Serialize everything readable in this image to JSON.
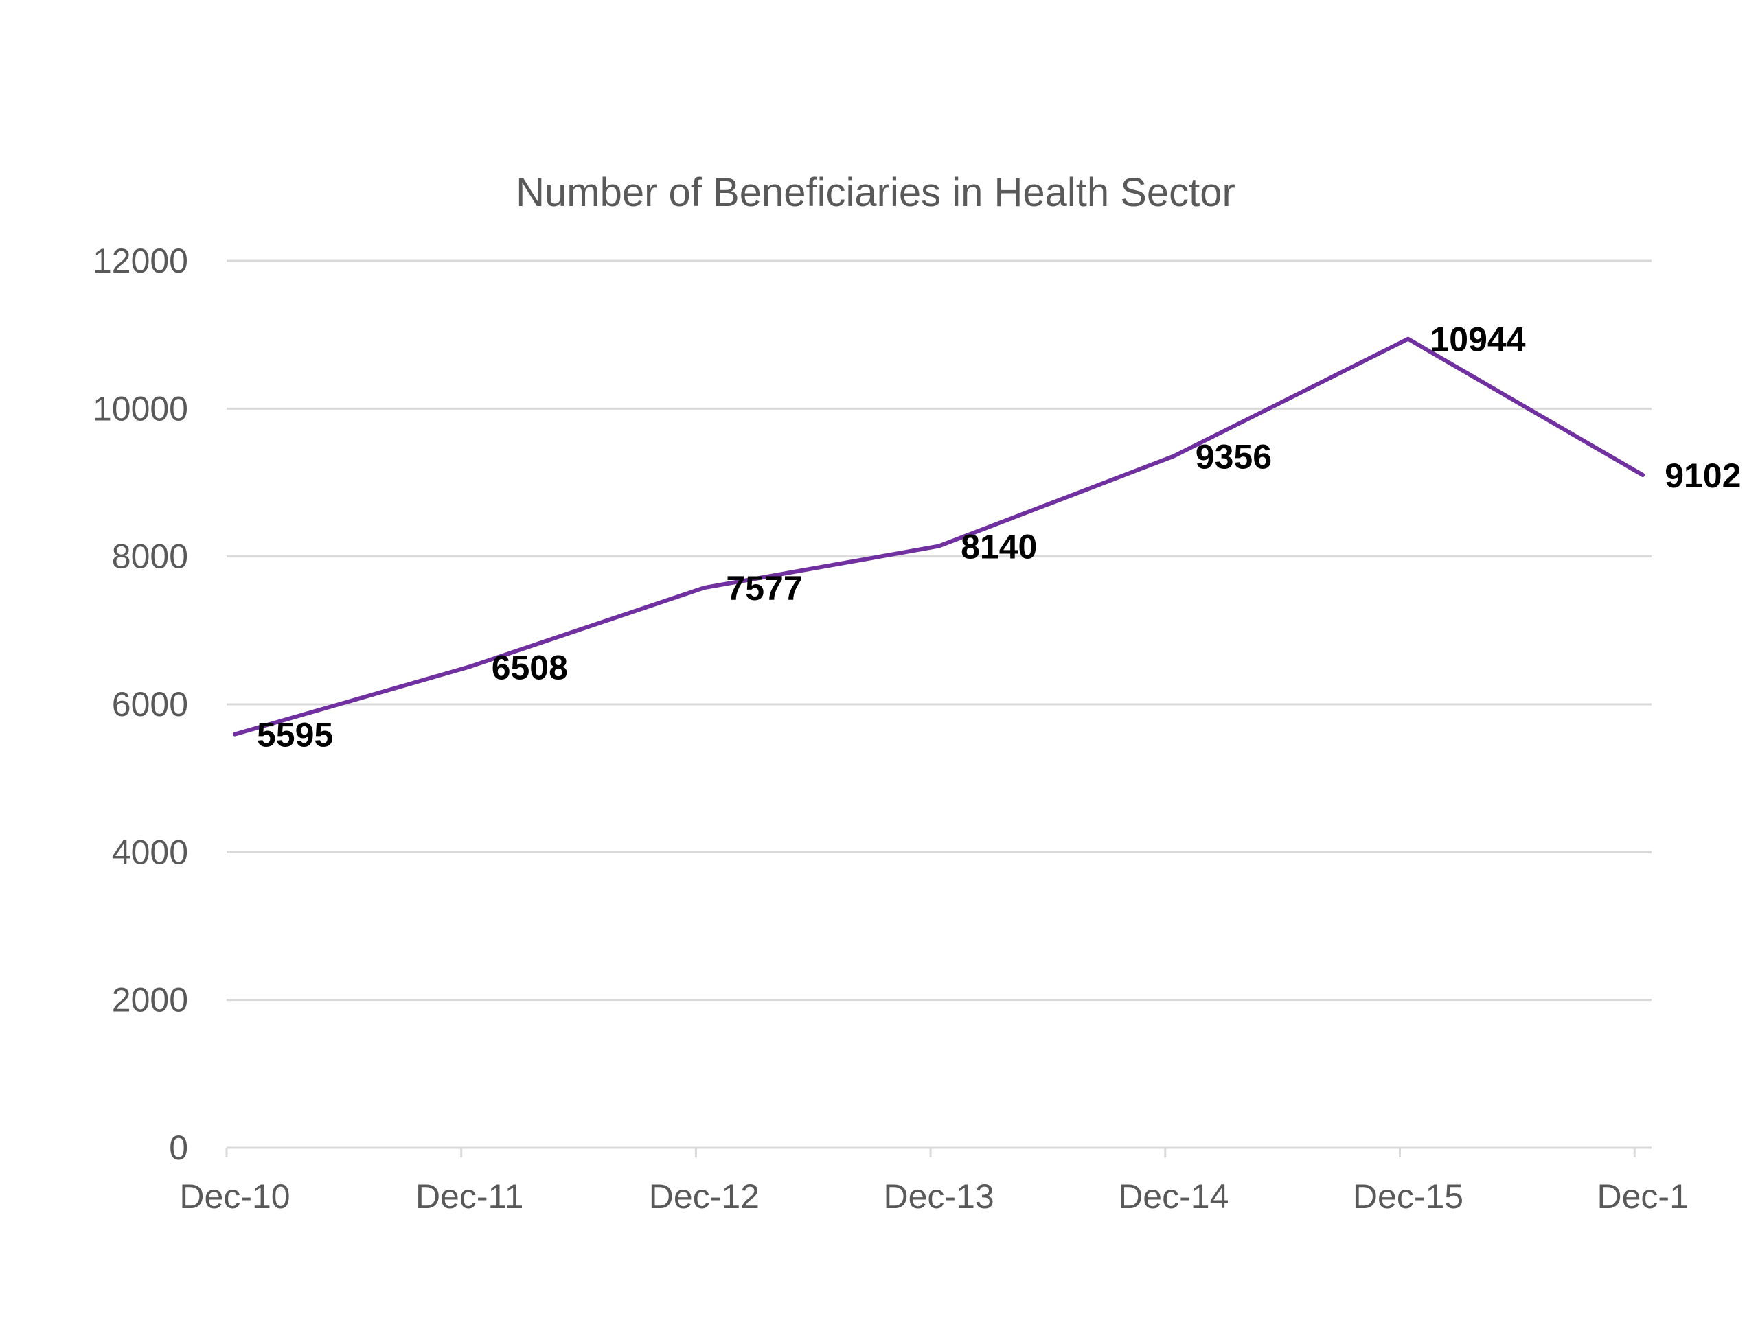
{
  "chart_data": {
    "type": "line",
    "title": "Number of Beneficiaries in Health Sector",
    "xlabel": "",
    "ylabel": "",
    "categories": [
      "Dec-10",
      "Dec-11",
      "Dec-12",
      "Dec-13",
      "Dec-14",
      "Dec-15",
      "Dec-1"
    ],
    "series": [
      {
        "values": [
          5595,
          6508,
          7577,
          8140,
          9356,
          10944,
          9102
        ]
      }
    ],
    "data_labels": [
      "5595",
      "6508",
      "7577",
      "8140",
      "9356",
      "10944",
      "9102"
    ],
    "ylim": [
      0,
      12000
    ],
    "yticks": [
      "0",
      "2000",
      "4000",
      "6000",
      "8000",
      "10000",
      "12000"
    ],
    "grid": true,
    "legend": "none",
    "colors": {
      "line": "#7030a0",
      "grid": "#d9d9d9",
      "text": "#595959",
      "label": "#000000"
    }
  }
}
